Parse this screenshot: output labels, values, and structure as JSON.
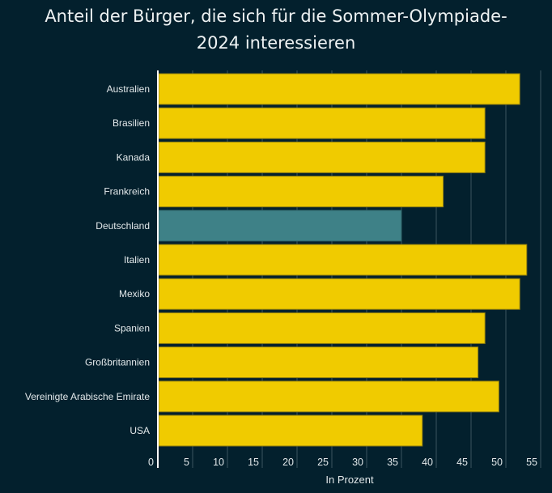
{
  "chart_data": {
    "type": "bar",
    "orientation": "horizontal",
    "title": "Anteil der Bürger, die sich für die Sommer-Olympiade-2024 interessieren",
    "title_lines": [
      "Anteil der Bürger, die sich für die Sommer-Olympiade-",
      "2024 interessieren"
    ],
    "xlabel": "In Prozent",
    "ylabel": "",
    "xlim": [
      0,
      57
    ],
    "xticks": [
      0,
      5,
      10,
      15,
      20,
      25,
      30,
      35,
      40,
      45,
      50,
      55
    ],
    "grid": true,
    "categories": [
      "Australien",
      "Brasilien",
      "Kanada",
      "Frankreich",
      "Deutschland",
      "Italien",
      "Mexiko",
      "Spanien",
      "Großbritannien",
      "Vereinigte Arabische Emirate",
      "USA"
    ],
    "values": [
      52,
      47,
      47,
      41,
      35,
      53,
      52,
      47,
      46,
      49,
      38
    ],
    "highlight": "Deutschland",
    "colors": {
      "bar": "#f0cb00",
      "bar_border": "#8a7a10",
      "highlight": "#3e8187",
      "highlight_border": "#2f6468",
      "background": "#03202d",
      "grid": "#3b5560",
      "axis": "#ffffff"
    }
  }
}
